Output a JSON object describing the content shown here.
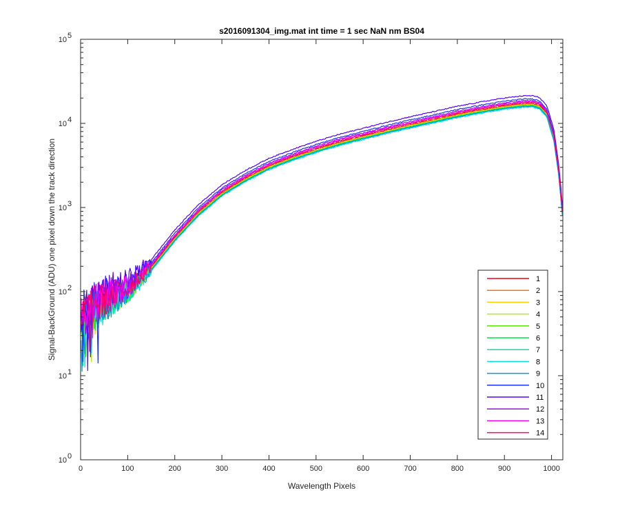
{
  "chart_data": {
    "type": "line",
    "title": "s2016091304_img.mat int time = 1 sec  NaN nm BS04",
    "xlabel": "Wavelength Pixels",
    "ylabel": "Signal-BackGround (ADU) one pixel down the track direction",
    "xlim": [
      0,
      1024
    ],
    "ylim": [
      1,
      100000
    ],
    "yscale": "log",
    "x_ticks": [
      0,
      100,
      200,
      300,
      400,
      500,
      600,
      700,
      800,
      900,
      1000
    ],
    "y_ticks": [
      {
        "value": 1,
        "base": "10",
        "exp": "0"
      },
      {
        "value": 10,
        "base": "10",
        "exp": "1"
      },
      {
        "value": 100,
        "base": "10",
        "exp": "2"
      },
      {
        "value": 1000,
        "base": "10",
        "exp": "3"
      },
      {
        "value": 10000,
        "base": "10",
        "exp": "4"
      },
      {
        "value": 100000,
        "base": "10",
        "exp": "5"
      }
    ],
    "grid": false,
    "legend_position": "bottom-right",
    "profile_x": [
      0,
      20,
      50,
      100,
      150,
      200,
      250,
      300,
      350,
      400,
      450,
      500,
      550,
      600,
      650,
      700,
      750,
      800,
      850,
      900,
      940,
      960,
      975,
      990,
      1005,
      1015,
      1024
    ],
    "profile_y": [
      45,
      60,
      80,
      110,
      200,
      450,
      900,
      1550,
      2300,
      3200,
      4100,
      5100,
      6200,
      7300,
      8600,
      10000,
      11500,
      13300,
      15000,
      16700,
      17700,
      17800,
      16800,
      13500,
      7000,
      2800,
      800
    ],
    "series": [
      {
        "name": "1",
        "color": "#e8001a",
        "scale": 0.97
      },
      {
        "name": "2",
        "color": "#ff7300",
        "scale": 0.95
      },
      {
        "name": "3",
        "color": "#ffcc00",
        "scale": 0.94
      },
      {
        "name": "4",
        "color": "#b3f000",
        "scale": 0.93
      },
      {
        "name": "5",
        "color": "#55e600",
        "scale": 0.92
      },
      {
        "name": "6",
        "color": "#00e64c",
        "scale": 0.91
      },
      {
        "name": "7",
        "color": "#00e6a8",
        "scale": 0.9
      },
      {
        "name": "8",
        "color": "#00e6e6",
        "scale": 0.88
      },
      {
        "name": "9",
        "color": "#0099e6",
        "scale": 0.9
      },
      {
        "name": "10",
        "color": "#1a33ff",
        "scale": 1.1
      },
      {
        "name": "11",
        "color": "#5500ff",
        "scale": 1.2
      },
      {
        "name": "12",
        "color": "#aa00ff",
        "scale": 1.05
      },
      {
        "name": "13",
        "color": "#ff00ff",
        "scale": 1.02
      },
      {
        "name": "14",
        "color": "#ff0066",
        "scale": 1.0
      }
    ]
  }
}
